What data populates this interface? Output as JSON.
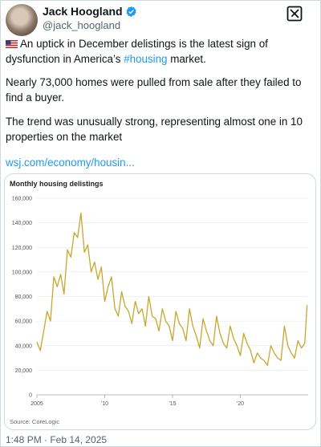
{
  "author": {
    "name": "Jack Hoogland",
    "handle": "@jack_hoogland"
  },
  "icons": {
    "verified": "verified-badge-icon",
    "grok": "grok-icon",
    "flag": "us-flag-icon"
  },
  "colors": {
    "link": "#1d9bf0",
    "line": "#c8a62e"
  },
  "tweet": {
    "p1_before": "An uptick in December delistings is the latest sign of dysfunction in America’s ",
    "p1_hashtag": "#housing",
    "p1_after": " market.",
    "p2": "Nearly 73,000 homes were pulled from sale after they failed to find a buyer.",
    "p3": "The trend was unusually strong, representing almost one in 10 properties on the market",
    "link": "wsj.com/economy/housin..."
  },
  "timestamp": "1:48 PM · Feb 14, 2025",
  "chart_data": {
    "type": "line",
    "title": "Monthly housing delistings",
    "source": "Source: CoreLogic",
    "ylim": [
      0,
      160000
    ],
    "yticks": [
      0,
      20000,
      40000,
      60000,
      80000,
      100000,
      120000,
      140000,
      160000
    ],
    "ytick_labels": [
      "0",
      "20,000",
      "40,000",
      "60,000",
      "80,000",
      "100,000",
      "120,000",
      "140,000",
      "160,000"
    ],
    "xlim": [
      2005,
      2025
    ],
    "xticks": [
      2005,
      2010,
      2015,
      2020
    ],
    "xtick_labels": [
      "2005",
      "'10",
      "'15",
      "'20"
    ],
    "grid": true,
    "series": [
      {
        "x": [
          2005.0,
          2005.25,
          2005.5,
          2005.75,
          2006.0,
          2006.25,
          2006.5,
          2006.75,
          2007.0,
          2007.25,
          2007.5,
          2007.75,
          2008.0,
          2008.25,
          2008.5,
          2008.75,
          2009.0,
          2009.25,
          2009.5,
          2009.75,
          2010.0,
          2010.25,
          2010.5,
          2010.75,
          2011.0,
          2011.25,
          2011.5,
          2011.75,
          2012.0,
          2012.25,
          2012.5,
          2012.75,
          2013.0,
          2013.25,
          2013.5,
          2013.75,
          2014.0,
          2014.25,
          2014.5,
          2014.75,
          2015.0,
          2015.25,
          2015.5,
          2015.75,
          2016.0,
          2016.25,
          2016.5,
          2016.75,
          2017.0,
          2017.25,
          2017.5,
          2017.75,
          2018.0,
          2018.25,
          2018.5,
          2018.75,
          2019.0,
          2019.25,
          2019.5,
          2019.75,
          2020.0,
          2020.25,
          2020.5,
          2020.75,
          2021.0,
          2021.25,
          2021.5,
          2021.75,
          2022.0,
          2022.25,
          2022.5,
          2022.75,
          2023.0,
          2023.25,
          2023.5,
          2023.75,
          2024.0,
          2024.25,
          2024.5,
          2024.75,
          2024.92
        ],
        "values": [
          43000,
          36000,
          52000,
          68000,
          60000,
          96000,
          88000,
          98000,
          82000,
          118000,
          112000,
          132000,
          128000,
          148000,
          116000,
          122000,
          100000,
          108000,
          94000,
          104000,
          76000,
          88000,
          96000,
          70000,
          64000,
          84000,
          72000,
          68000,
          58000,
          76000,
          66000,
          70000,
          56000,
          80000,
          64000,
          62000,
          52000,
          70000,
          60000,
          56000,
          44000,
          68000,
          58000,
          54000,
          44000,
          70000,
          56000,
          48000,
          38000,
          62000,
          52000,
          44000,
          40000,
          64000,
          50000,
          42000,
          38000,
          56000,
          46000,
          40000,
          32000,
          50000,
          42000,
          36000,
          26000,
          34000,
          30000,
          28000,
          24000,
          40000,
          34000,
          30000,
          28000,
          56000,
          40000,
          34000,
          30000,
          44000,
          38000,
          42000,
          73000
        ]
      }
    ]
  }
}
